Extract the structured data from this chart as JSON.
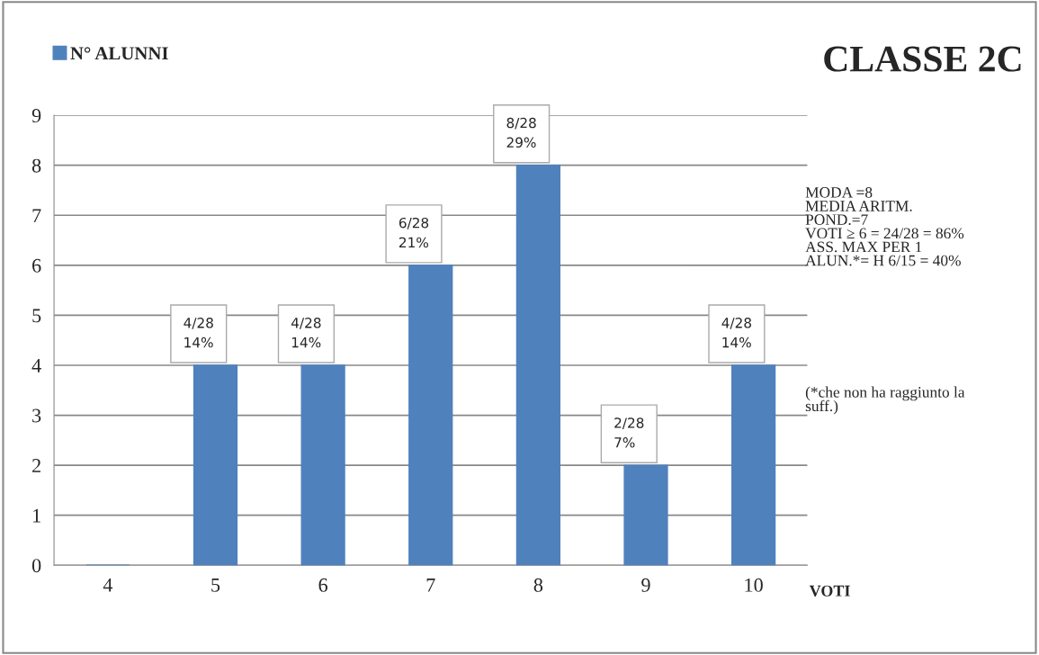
{
  "chart_data": {
    "type": "bar",
    "title": "CLASSE 2C",
    "xlabel": "VOTI",
    "categories": [
      "4",
      "5",
      "6",
      "7",
      "8",
      "9",
      "10"
    ],
    "series": [
      {
        "name": "N° ALUNNI",
        "color": "#4f81bd",
        "values": [
          0,
          4,
          4,
          6,
          8,
          2,
          4
        ],
        "value_labels": [
          null,
          "4/28\n14%",
          "4/28\n14%",
          "6/28\n21%",
          "8/28\n29%",
          "2/28\n7%",
          "4/28\n14%"
        ]
      }
    ],
    "ylim": [
      0,
      9
    ],
    "yticks": [
      0,
      1,
      2,
      3,
      4,
      5,
      6,
      7,
      8,
      9
    ],
    "grid": "y",
    "legend": "top left",
    "annotations": [
      "MODA =8\nMEDIA ARITM.\nPOND.=7\nVOTI ≥ 6 = 24/28 = 86%\nASS. MAX PER 1\nALUN.*= H 6/15 = 40%",
      "(*che non ha raggiunto la\nsuff.)"
    ]
  }
}
